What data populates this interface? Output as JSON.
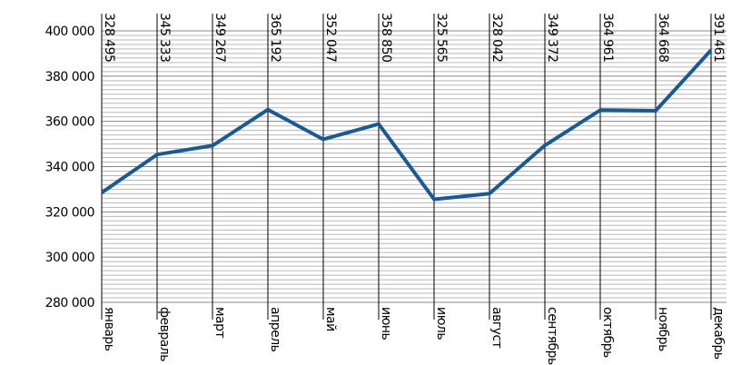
{
  "chart_data": {
    "type": "line",
    "categories": [
      "январь",
      "февраль",
      "март",
      "апрель",
      "май",
      "июнь",
      "июль",
      "август",
      "сентябрь",
      "октябрь",
      "ноябрь",
      "декабрь"
    ],
    "series": [
      {
        "name": null,
        "color": "#1a5a94",
        "values": [
          328495,
          345333,
          349267,
          365192,
          352047,
          358850,
          325565,
          328042,
          349372,
          364961,
          364668,
          391461
        ],
        "value_labels": [
          "328 495",
          "345 333",
          "349 267",
          "365 192",
          "352 047",
          "358 850",
          "325 565",
          "328 042",
          "349 372",
          "364 961",
          "364 668",
          "391 461"
        ]
      }
    ],
    "ylim": [
      280000,
      400000
    ],
    "yticks": [
      {
        "value": 280000,
        "label": "280 000"
      },
      {
        "value": 300000,
        "label": "300 000"
      },
      {
        "value": 320000,
        "label": "320 000"
      },
      {
        "value": 340000,
        "label": "340 000"
      },
      {
        "value": 360000,
        "label": "360 000"
      },
      {
        "value": 380000,
        "label": "380 000"
      },
      {
        "value": 400000,
        "label": "400 000"
      }
    ],
    "grid": true
  }
}
